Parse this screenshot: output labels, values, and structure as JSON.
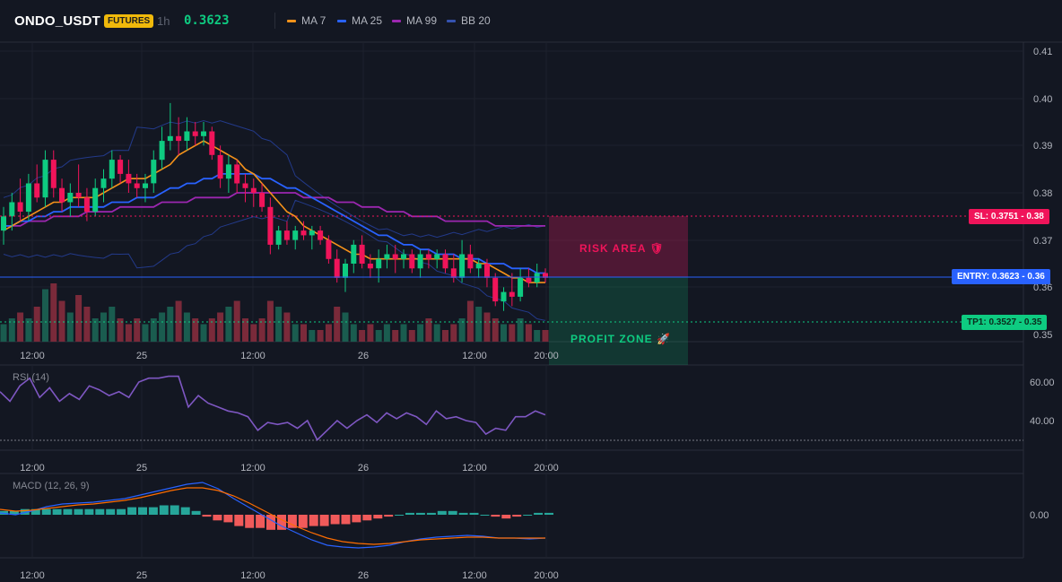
{
  "header": {
    "symbol": "ONDO_USDT",
    "badge": "FUTURES",
    "timeframe": "1h",
    "price": "0.3623",
    "legend": [
      {
        "label": "MA 7",
        "color": "#f7931a"
      },
      {
        "label": "MA 25",
        "color": "#2962ff"
      },
      {
        "label": "MA 99",
        "color": "#9c27b0"
      },
      {
        "label": "BB 20",
        "color": "#1e3a8a"
      }
    ]
  },
  "price_axis": [
    "0.41",
    "0.40",
    "0.39",
    "0.38",
    "0.37",
    "0.36",
    "0.35"
  ],
  "time_axis": [
    "12:00",
    "25",
    "12:00",
    "26",
    "12:00",
    "20:00"
  ],
  "levels": {
    "sl": {
      "label": "SL: 0.3751 - 0.38",
      "color": "#f0145a"
    },
    "entry": {
      "label": "ENTRY: 0.3623 - 0.36",
      "color": "#2962ff"
    },
    "tp1": {
      "label": "TP1: 0.3527 - 0.35",
      "color": "#0ecb81"
    }
  },
  "zones": {
    "risk": "RISK AREA 🛡",
    "profit": "PROFIT ZONE 🚀"
  },
  "rsi": {
    "title": "RSI (14)",
    "axis": [
      "60.00",
      "40.00"
    ]
  },
  "macd": {
    "title": "MACD (12, 26, 9)",
    "axis": [
      "0.00"
    ]
  },
  "colors": {
    "up": "#0ecb81",
    "down": "#f0145a",
    "background": "#131722",
    "grid": "#1e222d"
  },
  "chart_data": {
    "type": "candlestick",
    "x_labels": [
      "12:00",
      "25",
      "12:00",
      "26",
      "12:00",
      "20:00"
    ],
    "ylim": [
      0.35,
      0.41
    ],
    "candles": [
      [
        0.372,
        0.377,
        0.369,
        0.375
      ],
      [
        0.375,
        0.38,
        0.372,
        0.378
      ],
      [
        0.378,
        0.383,
        0.374,
        0.376
      ],
      [
        0.376,
        0.384,
        0.374,
        0.382
      ],
      [
        0.382,
        0.386,
        0.378,
        0.379
      ],
      [
        0.379,
        0.389,
        0.377,
        0.387
      ],
      [
        0.387,
        0.389,
        0.379,
        0.381
      ],
      [
        0.381,
        0.383,
        0.376,
        0.378
      ],
      [
        0.378,
        0.382,
        0.375,
        0.38
      ],
      [
        0.38,
        0.386,
        0.377,
        0.379
      ],
      [
        0.379,
        0.381,
        0.374,
        0.376
      ],
      [
        0.376,
        0.383,
        0.375,
        0.381
      ],
      [
        0.381,
        0.385,
        0.378,
        0.383
      ],
      [
        0.383,
        0.389,
        0.381,
        0.387
      ],
      [
        0.387,
        0.388,
        0.382,
        0.384
      ],
      [
        0.384,
        0.387,
        0.38,
        0.382
      ],
      [
        0.382,
        0.384,
        0.379,
        0.381
      ],
      [
        0.381,
        0.384,
        0.378,
        0.382
      ],
      [
        0.382,
        0.389,
        0.38,
        0.387
      ],
      [
        0.387,
        0.394,
        0.385,
        0.391
      ],
      [
        0.391,
        0.399,
        0.389,
        0.392
      ],
      [
        0.392,
        0.396,
        0.388,
        0.391
      ],
      [
        0.391,
        0.396,
        0.389,
        0.393
      ],
      [
        0.393,
        0.395,
        0.39,
        0.392
      ],
      [
        0.392,
        0.395,
        0.39,
        0.393
      ],
      [
        0.393,
        0.394,
        0.387,
        0.388
      ],
      [
        0.388,
        0.39,
        0.381,
        0.383
      ],
      [
        0.383,
        0.388,
        0.38,
        0.386
      ],
      [
        0.386,
        0.387,
        0.38,
        0.382
      ],
      [
        0.382,
        0.384,
        0.378,
        0.381
      ],
      [
        0.381,
        0.383,
        0.377,
        0.38
      ],
      [
        0.38,
        0.382,
        0.376,
        0.377
      ],
      [
        0.377,
        0.379,
        0.367,
        0.369
      ],
      [
        0.369,
        0.373,
        0.368,
        0.372
      ],
      [
        0.372,
        0.374,
        0.369,
        0.37
      ],
      [
        0.37,
        0.373,
        0.368,
        0.372
      ],
      [
        0.372,
        0.374,
        0.37,
        0.371
      ],
      [
        0.371,
        0.373,
        0.368,
        0.372
      ],
      [
        0.372,
        0.373,
        0.369,
        0.37
      ],
      [
        0.37,
        0.371,
        0.365,
        0.366
      ],
      [
        0.366,
        0.368,
        0.361,
        0.362
      ],
      [
        0.362,
        0.366,
        0.359,
        0.365
      ],
      [
        0.365,
        0.37,
        0.363,
        0.369
      ],
      [
        0.369,
        0.371,
        0.364,
        0.365
      ],
      [
        0.365,
        0.367,
        0.362,
        0.364
      ],
      [
        0.364,
        0.368,
        0.361,
        0.366
      ],
      [
        0.366,
        0.369,
        0.364,
        0.367
      ],
      [
        0.367,
        0.369,
        0.363,
        0.366
      ],
      [
        0.366,
        0.368,
        0.364,
        0.367
      ],
      [
        0.367,
        0.368,
        0.363,
        0.364
      ],
      [
        0.364,
        0.368,
        0.362,
        0.367
      ],
      [
        0.367,
        0.368,
        0.364,
        0.366
      ],
      [
        0.366,
        0.368,
        0.364,
        0.367
      ],
      [
        0.367,
        0.368,
        0.363,
        0.364
      ],
      [
        0.364,
        0.367,
        0.361,
        0.362
      ],
      [
        0.362,
        0.37,
        0.361,
        0.367
      ],
      [
        0.367,
        0.369,
        0.363,
        0.364
      ],
      [
        0.364,
        0.366,
        0.362,
        0.365
      ],
      [
        0.365,
        0.366,
        0.36,
        0.362
      ],
      [
        0.362,
        0.363,
        0.356,
        0.357
      ],
      [
        0.357,
        0.36,
        0.355,
        0.359
      ],
      [
        0.359,
        0.363,
        0.356,
        0.358
      ],
      [
        0.358,
        0.364,
        0.357,
        0.362
      ],
      [
        0.362,
        0.364,
        0.36,
        0.361
      ],
      [
        0.361,
        0.365,
        0.36,
        0.363
      ],
      [
        0.363,
        0.364,
        0.361,
        0.362
      ]
    ],
    "volume": [
      3,
      4,
      5,
      4,
      6,
      9,
      10,
      7,
      5,
      8,
      6,
      4,
      5,
      6,
      4,
      3,
      4,
      3,
      4,
      5,
      6,
      7,
      5,
      4,
      3,
      4,
      5,
      6,
      7,
      4,
      3,
      4,
      7,
      6,
      5,
      3,
      3,
      2,
      2,
      3,
      6,
      5,
      3,
      2,
      3,
      2,
      3,
      2,
      3,
      2,
      3,
      4,
      3,
      2,
      3,
      4,
      7,
      6,
      5,
      4,
      3,
      3,
      4,
      3,
      2,
      2
    ],
    "ma7": [
      0.372,
      0.373,
      0.374,
      0.375,
      0.376,
      0.377,
      0.378,
      0.378,
      0.379,
      0.379,
      0.379,
      0.379,
      0.38,
      0.381,
      0.382,
      0.383,
      0.383,
      0.383,
      0.384,
      0.385,
      0.386,
      0.388,
      0.389,
      0.39,
      0.391,
      0.39,
      0.389,
      0.388,
      0.387,
      0.385,
      0.384,
      0.382,
      0.38,
      0.378,
      0.376,
      0.375,
      0.373,
      0.372,
      0.371,
      0.37,
      0.369,
      0.368,
      0.367,
      0.367,
      0.366,
      0.366,
      0.366,
      0.366,
      0.366,
      0.366,
      0.366,
      0.366,
      0.366,
      0.366,
      0.366,
      0.366,
      0.366,
      0.365,
      0.365,
      0.364,
      0.363,
      0.362,
      0.362,
      0.361,
      0.361,
      0.361
    ],
    "ma25": [
      0.373,
      0.373,
      0.374,
      0.374,
      0.375,
      0.375,
      0.376,
      0.376,
      0.377,
      0.377,
      0.377,
      0.377,
      0.377,
      0.378,
      0.378,
      0.378,
      0.379,
      0.379,
      0.379,
      0.38,
      0.381,
      0.381,
      0.382,
      0.382,
      0.383,
      0.383,
      0.384,
      0.384,
      0.384,
      0.384,
      0.384,
      0.383,
      0.383,
      0.382,
      0.381,
      0.381,
      0.38,
      0.379,
      0.378,
      0.377,
      0.376,
      0.375,
      0.374,
      0.373,
      0.372,
      0.371,
      0.371,
      0.37,
      0.369,
      0.369,
      0.368,
      0.368,
      0.367,
      0.367,
      0.367,
      0.366,
      0.366,
      0.366,
      0.365,
      0.365,
      0.365,
      0.364,
      0.364,
      0.364,
      0.363,
      0.363
    ],
    "ma99": [
      0.373,
      0.373,
      0.373,
      0.374,
      0.374,
      0.374,
      0.375,
      0.375,
      0.375,
      0.375,
      0.376,
      0.376,
      0.376,
      0.376,
      0.377,
      0.377,
      0.377,
      0.377,
      0.377,
      0.378,
      0.378,
      0.378,
      0.378,
      0.379,
      0.379,
      0.379,
      0.379,
      0.379,
      0.38,
      0.38,
      0.38,
      0.38,
      0.38,
      0.38,
      0.38,
      0.38,
      0.379,
      0.379,
      0.379,
      0.379,
      0.378,
      0.378,
      0.378,
      0.377,
      0.377,
      0.377,
      0.376,
      0.376,
      0.376,
      0.375,
      0.375,
      0.375,
      0.375,
      0.374,
      0.374,
      0.374,
      0.374,
      0.374,
      0.374,
      0.373,
      0.373,
      0.373,
      0.373,
      0.373,
      0.373,
      0.373
    ]
  }
}
